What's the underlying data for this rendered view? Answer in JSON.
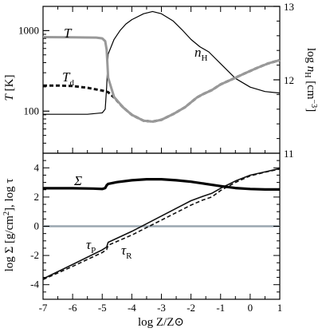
{
  "chart_data": [
    {
      "type": "line",
      "panel": "top",
      "xlim": [
        -7,
        1
      ],
      "ylabel": "T [K]",
      "ylabel_parts": {
        "main": "T",
        "unit": " [K]"
      },
      "yscale": "log",
      "ylim": [
        30,
        2000
      ],
      "yticks": [
        {
          "value": 100,
          "label": "100"
        },
        {
          "value": 1000,
          "label": "1000"
        }
      ],
      "y2label": "log n_H [cm^-3]",
      "y2label_parts": {
        "pre": "log ",
        "main": "n",
        "sub": "H",
        "unit": " [cm",
        "sup": "−3",
        "post": "]"
      },
      "y2lim": [
        11,
        13
      ],
      "y2ticks": [
        {
          "value": 12,
          "label": "12"
        },
        {
          "value": 13,
          "label": "13"
        }
      ],
      "grid": false,
      "series": [
        {
          "name": "T",
          "axis": "left",
          "color": "#999999",
          "style": "solid",
          "x": [
            -7,
            -6,
            -5.2,
            -5.0,
            -4.9,
            -4.85,
            -4.8,
            -4.6,
            -4.3,
            -4.0,
            -3.6,
            -3.3,
            -3.0,
            -2.6,
            -2.2,
            -1.8,
            -1.6,
            -1.3,
            -1.0,
            -0.6,
            -0.2,
            0.2,
            0.6,
            1.0
          ],
          "y": [
            830,
            825,
            820,
            800,
            740,
            580,
            260,
            150,
            112,
            90,
            76,
            74,
            78,
            92,
            112,
            148,
            162,
            182,
            215,
            250,
            292,
            340,
            390,
            430
          ]
        },
        {
          "name": "T_d",
          "axis": "left",
          "color": "#111111",
          "style": "dashed",
          "x": [
            -7,
            -6.5,
            -6,
            -5.5,
            -5.0,
            -4.8,
            -4.6,
            -4.3,
            -4.0,
            -3.6,
            -3.3,
            -3.0,
            -2.6,
            -2.2,
            -1.8,
            -1.6,
            -1.3,
            -1.0,
            -0.6,
            -0.2,
            0.2,
            0.6,
            1.0
          ],
          "y": [
            208,
            208,
            205,
            195,
            180,
            172,
            148,
            112,
            90,
            76,
            74,
            78,
            92,
            112,
            148,
            162,
            182,
            215,
            250,
            292,
            340,
            390,
            430
          ]
        },
        {
          "name": "n_H",
          "axis": "right",
          "color": "#000000",
          "style": "solid",
          "x": [
            -7,
            -6,
            -5.5,
            -5.0,
            -4.9,
            -4.85,
            -4.8,
            -4.6,
            -4.4,
            -4.2,
            -4.0,
            -3.6,
            -3.3,
            -3.0,
            -2.6,
            -2.3,
            -2.0,
            -1.7,
            -1.4,
            -1.0,
            -0.5,
            0.0,
            0.5,
            1.0
          ],
          "y": [
            11.53,
            11.53,
            11.53,
            11.55,
            11.6,
            11.9,
            12.35,
            12.55,
            12.67,
            12.76,
            12.82,
            12.9,
            12.93,
            12.9,
            12.8,
            12.68,
            12.55,
            12.45,
            12.38,
            12.22,
            12.02,
            11.9,
            11.84,
            11.82
          ]
        }
      ],
      "annotations": [
        {
          "text": "T",
          "sub": "",
          "target": "T"
        },
        {
          "text": "T",
          "sub": "d",
          "target": "T_d"
        },
        {
          "text": "n",
          "sub": "H",
          "target": "n_H"
        }
      ]
    },
    {
      "type": "line",
      "panel": "bottom",
      "xlim": [
        -7,
        1
      ],
      "xlabel": "log Z/Z⊙",
      "xticks": [
        {
          "value": -7,
          "label": "-7"
        },
        {
          "value": -6,
          "label": "-6"
        },
        {
          "value": -5,
          "label": "-5"
        },
        {
          "value": -4,
          "label": "-4"
        },
        {
          "value": -3,
          "label": "-3"
        },
        {
          "value": -2,
          "label": "-2"
        },
        {
          "value": -1,
          "label": "-1"
        },
        {
          "value": 0,
          "label": "0"
        },
        {
          "value": 1,
          "label": "1"
        }
      ],
      "ylabel": "log Σ [g/cm^2], log τ",
      "ylabel_parts": {
        "main": "log Σ [g/cm",
        "sup": "2",
        "post": "],  log τ"
      },
      "ylim": [
        -5,
        5
      ],
      "yticks": [
        {
          "value": -4,
          "label": "-4"
        },
        {
          "value": -2,
          "label": "-2"
        },
        {
          "value": 0,
          "label": "0"
        },
        {
          "value": 2,
          "label": "2"
        },
        {
          "value": 4,
          "label": "4"
        }
      ],
      "y2ticks": [
        {
          "value": 11,
          "label": "11"
        }
      ],
      "grid": false,
      "series": [
        {
          "name": "Σ",
          "color": "#000000",
          "style": "solid",
          "x": [
            -7,
            -6,
            -5.3,
            -5.0,
            -4.9,
            -4.85,
            -4.8,
            -4.5,
            -4.0,
            -3.5,
            -3.0,
            -2.5,
            -2.0,
            -1.5,
            -1.0,
            -0.5,
            0.0,
            0.5,
            1.0
          ],
          "y": [
            2.6,
            2.6,
            2.58,
            2.55,
            2.62,
            2.8,
            2.9,
            3.02,
            3.15,
            3.22,
            3.22,
            3.15,
            3.05,
            2.9,
            2.75,
            2.62,
            2.55,
            2.52,
            2.52
          ]
        },
        {
          "name": "τ_P",
          "color": "#111111",
          "style": "solid",
          "x": [
            -7,
            -6,
            -5.0,
            -4.85,
            -4.8,
            -4.0,
            -3.0,
            -2.0,
            -1.6,
            -1.3,
            -1.0,
            -0.5,
            0.0,
            0.5,
            1.0
          ],
          "y": [
            -3.6,
            -2.62,
            -1.62,
            -1.42,
            -1.1,
            -0.35,
            0.7,
            1.75,
            2.05,
            2.25,
            2.6,
            3.1,
            3.5,
            3.72,
            3.95
          ]
        },
        {
          "name": "τ_R",
          "color": "#111111",
          "style": "dashed",
          "x": [
            -7,
            -6,
            -5.0,
            -4.85,
            -4.8,
            -4.0,
            -3.0,
            -2.0,
            -1.6,
            -1.3,
            -1.0,
            -0.5,
            0.0,
            0.5,
            1.0
          ],
          "y": [
            -3.65,
            -2.75,
            -1.8,
            -1.6,
            -1.3,
            -0.6,
            0.42,
            1.45,
            1.8,
            2.0,
            2.45,
            3.0,
            3.45,
            3.7,
            3.92
          ]
        },
        {
          "name": "zero",
          "color": "#9aa7b1",
          "style": "solid",
          "x": [
            -7,
            1
          ],
          "y": [
            0,
            0
          ]
        }
      ],
      "annotations": [
        {
          "text": "Σ",
          "sub": "",
          "target": "Σ"
        },
        {
          "text": "τ",
          "sub": "P",
          "target": "τ_P"
        },
        {
          "text": "τ",
          "sub": "R",
          "target": "τ_R"
        }
      ]
    }
  ]
}
